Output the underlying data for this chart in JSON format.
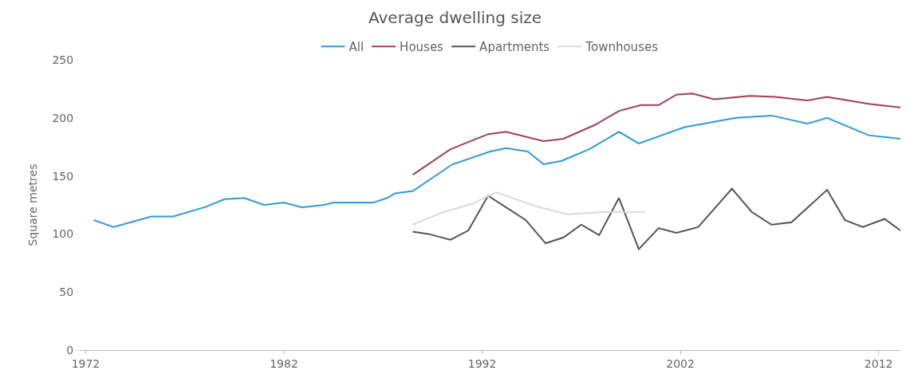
{
  "chart_data": {
    "type": "line",
    "title": "Average dwelling size",
    "ylabel": "Square metres",
    "xlim": [
      1971.7,
      2013.1
    ],
    "xticks": [
      1972,
      1982,
      1992,
      2002,
      2012
    ],
    "ylim": [
      0,
      250
    ],
    "yticks": [
      0,
      50,
      100,
      150,
      200,
      250
    ],
    "legend": "top",
    "line_style": "solid",
    "marker": "none",
    "series": [
      {
        "name": "All",
        "color": "#2e9bd6",
        "x": [
          1972.4,
          1973.4,
          1975.3,
          1976.4,
          1978,
          1979,
          1980,
          1981,
          1982,
          1982.9,
          1984,
          1984.5,
          1986.5,
          1987.2,
          1987.6,
          1988.5,
          1990.5,
          1992.4,
          1993.2,
          1994.3,
          1995.1,
          1996,
          1997.4,
          1998.9,
          1999.9,
          2002.2,
          2004.8,
          2006.6,
          2008.4,
          2009.4,
          2011.5,
          2013.1
        ],
        "values": [
          112,
          106,
          115,
          115,
          123,
          130,
          131,
          125,
          127,
          123,
          125,
          127,
          127,
          131,
          135,
          137,
          160,
          171,
          174,
          171,
          160,
          163,
          173,
          188,
          178,
          192,
          200,
          202,
          195,
          200,
          185,
          182
        ]
      },
      {
        "name": "Houses",
        "color": "#a0404f",
        "x": [
          1988.5,
          1990.4,
          1992.3,
          1993.2,
          1995.1,
          1996.1,
          1997.7,
          1998.9,
          2000,
          2000.9,
          2001.8,
          2002.6,
          2003.7,
          2005.5,
          2006.8,
          2008.4,
          2009.4,
          2011.5,
          2013.1
        ],
        "values": [
          151,
          173,
          186,
          188,
          180,
          182,
          194,
          206,
          211,
          211,
          220,
          221,
          216,
          219,
          218,
          215,
          218,
          212,
          209
        ]
      },
      {
        "name": "Apartments",
        "color": "#555555",
        "x": [
          1988.5,
          1989.3,
          1990.4,
          1991.3,
          1992.3,
          1993.2,
          1994.2,
          1995.2,
          1996.1,
          1997,
          1997.9,
          1998.9,
          1999.9,
          2000.9,
          2001.8,
          2002.9,
          2004.6,
          2005.6,
          2006.6,
          2007.6,
          2009.4,
          2010.3,
          2011.2,
          2012.3,
          2013.1
        ],
        "values": [
          102,
          100,
          95,
          103,
          133,
          123,
          112,
          92,
          97,
          108,
          99,
          131,
          87,
          105,
          101,
          106,
          139,
          119,
          108,
          110,
          138,
          112,
          106,
          113,
          103
        ]
      },
      {
        "name": "Townhouses",
        "color": "#d9d9d9",
        "x": [
          1988.5,
          1989.9,
          1991.5,
          1992.7,
          1994.7,
          1996.3,
          1998.2,
          2000.2
        ],
        "values": [
          108,
          118,
          126,
          136,
          124,
          117,
          119,
          119
        ]
      }
    ]
  }
}
